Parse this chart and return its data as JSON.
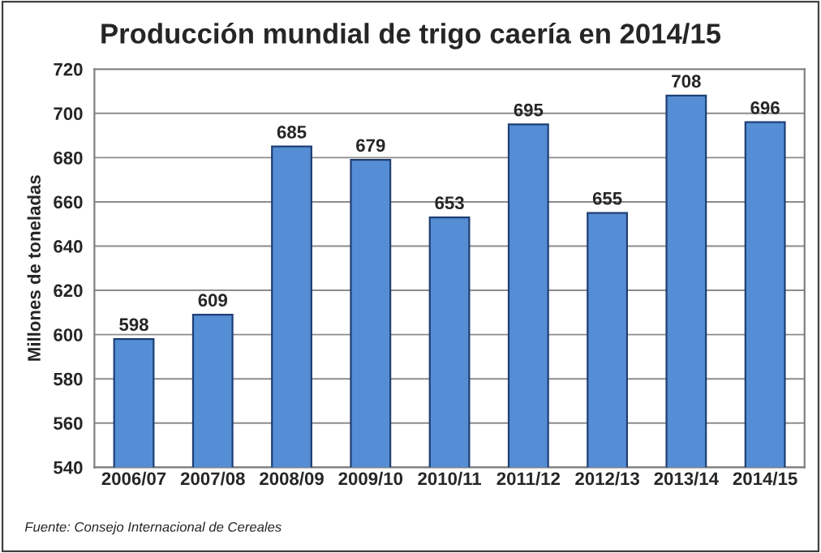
{
  "chart_data": {
    "type": "bar",
    "title": "Producción mundial de trigo caería en 2014/15",
    "ylabel": "Millones de toneladas",
    "categories": [
      "2006/07",
      "2007/08",
      "2008/09",
      "2009/10",
      "2010/11",
      "2011/12",
      "2012/13",
      "2013/14",
      "2014/15"
    ],
    "values": [
      598,
      609,
      685,
      679,
      653,
      695,
      655,
      708,
      696
    ],
    "color": "#558ed5",
    "ylim": [
      540,
      720
    ],
    "yticks": [
      540,
      560,
      580,
      600,
      620,
      640,
      660,
      680,
      700,
      720
    ],
    "grid": "y",
    "data_labels": true,
    "annotations": [
      "Fuente: Consejo Internacional de Cereales"
    ]
  }
}
